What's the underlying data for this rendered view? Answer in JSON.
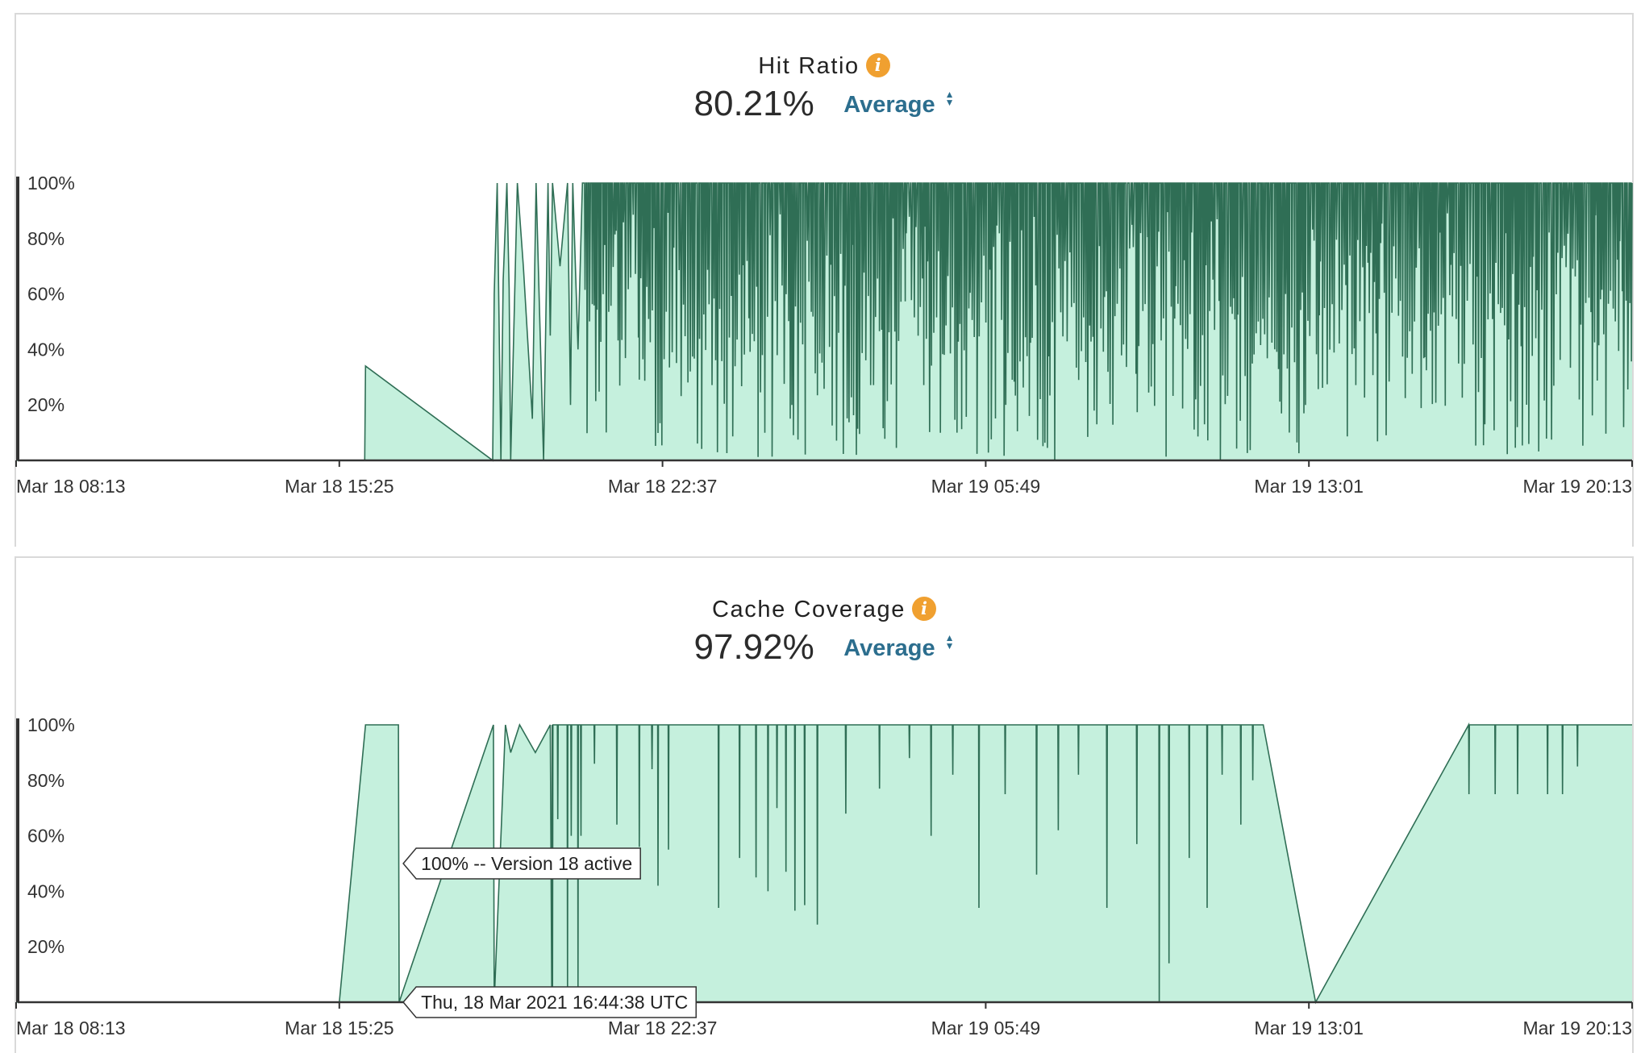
{
  "colors": {
    "area_fill": "#c5f0dd",
    "line": "#2f6e55",
    "axis": "#333333",
    "accent_link": "#2c6e8e",
    "info_icon": "#f0a030",
    "border": "#d9d9d9"
  },
  "chart_data": [
    {
      "type": "area",
      "title": "Hit Ratio",
      "summary_value": "80.21%",
      "aggregation": "Average",
      "info_icon": "info-icon",
      "xlabel": "",
      "ylabel": "",
      "ylim": [
        0,
        100
      ],
      "y_ticks": [
        "20%",
        "40%",
        "60%",
        "80%",
        "100%"
      ],
      "x_ticks": [
        "Mar 18 08:13",
        "Mar 18 15:25",
        "Mar 18 22:37",
        "Mar 19 05:49",
        "Mar 19 13:01",
        "Mar 19 20:13"
      ],
      "series_style": "dense high-frequency oscillation between 0% and 100% after Mar 18 ~18:50",
      "x": [
        "Mar 18 08:13",
        "Mar 18 09:00",
        "Mar 18 12:00",
        "Mar 18 15:25",
        "Mar 18 15:59",
        "Mar 18 16:00",
        "Mar 18 18:50",
        "Mar 18 18:52",
        "Mar 18 18:56",
        "Mar 18 19:01",
        "Mar 18 19:04",
        "Mar 18 19:09",
        "Mar 18 19:12",
        "Mar 18 19:14",
        "Mar 18 19:23",
        "Mar 18 19:31",
        "Mar 18 19:43",
        "Mar 18 19:48",
        "Mar 18 19:58",
        "Mar 18 20:04",
        "Mar 18 20:07",
        "Mar 18 20:10",
        "Mar 18 20:20",
        "Mar 18 20:30",
        "Mar 18 20:34",
        "Mar 18 20:37",
        "Mar 18 20:44",
        "Mar 18 20:50"
      ],
      "y": [
        0,
        0,
        0,
        0,
        0,
        34,
        0,
        60,
        100,
        0,
        65,
        100,
        62,
        0,
        100,
        70,
        15,
        100,
        0,
        100,
        45,
        100,
        70,
        100,
        20,
        100,
        40,
        100
      ],
      "oscillation_segment": {
        "from": "Mar 18 20:50",
        "to": "Mar 19 20:13",
        "min": 0,
        "max": 100,
        "typical_low": [
          35,
          60
        ]
      }
    },
    {
      "type": "area",
      "title": "Cache Coverage",
      "summary_value": "97.92%",
      "aggregation": "Average",
      "info_icon": "info-icon",
      "xlabel": "",
      "ylabel": "",
      "ylim": [
        0,
        100
      ],
      "y_ticks": [
        "20%",
        "40%",
        "60%",
        "80%",
        "100%"
      ],
      "x_ticks": [
        "Mar 18 08:13",
        "Mar 18 15:25",
        "Mar 18 22:37",
        "Mar 19 05:49",
        "Mar 19 13:01",
        "Mar 19 20:13"
      ],
      "x": [
        "Mar 18 08:13",
        "Mar 18 09:00",
        "Mar 18 12:00",
        "Mar 18 15:25",
        "Mar 18 16:00",
        "Mar 18 16:44",
        "Mar 18 16:45",
        "Mar 18 18:51",
        "Mar 18 18:52",
        "Mar 18 19:07",
        "Mar 18 19:14",
        "Mar 18 19:26",
        "Mar 18 19:47",
        "Mar 18 20:07",
        "Mar 18 20:09",
        "Mar 19 12:00",
        "Mar 19 13:10",
        "Mar 19 20:13"
      ],
      "y": [
        0,
        0,
        0,
        0,
        100,
        100,
        0,
        100,
        0,
        100,
        90,
        100,
        90,
        100,
        0,
        100,
        0,
        100
      ],
      "dips": [
        {
          "x": "Mar 18 20:10",
          "y": 5
        },
        {
          "x": "Mar 18 20:17",
          "y": 66
        },
        {
          "x": "Mar 18 20:30",
          "y": 5
        },
        {
          "x": "Mar 18 20:35",
          "y": 60
        },
        {
          "x": "Mar 18 20:44",
          "y": 5
        },
        {
          "x": "Mar 18 20:48",
          "y": 60
        },
        {
          "x": "Mar 18 21:06",
          "y": 86
        },
        {
          "x": "Mar 18 21:36",
          "y": 64
        },
        {
          "x": "Mar 18 22:06",
          "y": 56
        },
        {
          "x": "Mar 18 22:23",
          "y": 84
        },
        {
          "x": "Mar 18 22:31",
          "y": 42
        },
        {
          "x": "Mar 18 22:45",
          "y": 55
        },
        {
          "x": "Mar 18 23:52",
          "y": 34
        },
        {
          "x": "Mar 19 00:20",
          "y": 52
        },
        {
          "x": "Mar 19 00:42",
          "y": 45
        },
        {
          "x": "Mar 19 00:58",
          "y": 40
        },
        {
          "x": "Mar 19 01:10",
          "y": 70
        },
        {
          "x": "Mar 19 01:22",
          "y": 47
        },
        {
          "x": "Mar 19 01:34",
          "y": 33
        },
        {
          "x": "Mar 19 01:47",
          "y": 35
        },
        {
          "x": "Mar 19 02:04",
          "y": 28
        },
        {
          "x": "Mar 19 02:42",
          "y": 68
        },
        {
          "x": "Mar 19 03:27",
          "y": 77
        },
        {
          "x": "Mar 19 04:07",
          "y": 88
        },
        {
          "x": "Mar 19 04:36",
          "y": 60
        },
        {
          "x": "Mar 19 05:05",
          "y": 82
        },
        {
          "x": "Mar 19 05:40",
          "y": 34
        },
        {
          "x": "Mar 19 06:15",
          "y": 75
        },
        {
          "x": "Mar 19 06:57",
          "y": 46
        },
        {
          "x": "Mar 19 07:26",
          "y": 62
        },
        {
          "x": "Mar 19 07:53",
          "y": 82
        },
        {
          "x": "Mar 19 08:31",
          "y": 34
        },
        {
          "x": "Mar 19 09:11",
          "y": 57
        },
        {
          "x": "Mar 19 09:41",
          "y": 0
        },
        {
          "x": "Mar 19 09:54",
          "y": 14
        },
        {
          "x": "Mar 19 10:21",
          "y": 52
        },
        {
          "x": "Mar 19 10:45",
          "y": 34
        },
        {
          "x": "Mar 19 11:05",
          "y": 82
        },
        {
          "x": "Mar 19 11:30",
          "y": 64
        },
        {
          "x": "Mar 19 11:46",
          "y": 80
        },
        {
          "x": "Mar 19 16:35",
          "y": 75
        },
        {
          "x": "Mar 19 17:10",
          "y": 75
        },
        {
          "x": "Mar 19 17:40",
          "y": 75
        },
        {
          "x": "Mar 19 18:20",
          "y": 75
        },
        {
          "x": "Mar 19 18:40",
          "y": 75
        },
        {
          "x": "Mar 19 19:00",
          "y": 85
        }
      ],
      "annotations": [
        {
          "text": "100% -- Version 18 active",
          "x": "Mar 18 16:44",
          "y": 50
        },
        {
          "text": "Thu, 18 Mar 2021 16:44:38 UTC",
          "x": "Mar 18 16:44",
          "y": 0
        }
      ]
    }
  ]
}
